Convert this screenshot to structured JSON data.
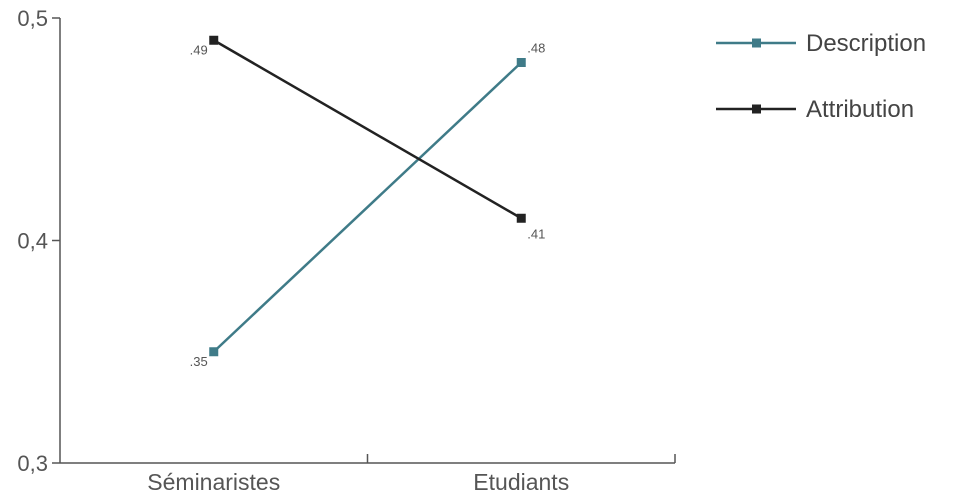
{
  "chart_data": {
    "type": "line",
    "categories": [
      "Séminaristes",
      "Etudiants"
    ],
    "series": [
      {
        "name": "Description",
        "values": [
          0.35,
          0.48
        ],
        "labels": [
          ".35",
          ".48"
        ],
        "color": "#3f7b88"
      },
      {
        "name": "Attribution",
        "values": [
          0.49,
          0.41
        ],
        "labels": [
          ".49",
          ".41"
        ],
        "color": "#222222"
      }
    ],
    "yticks": [
      "0,3",
      "0,4",
      "0,5"
    ],
    "ylim": [
      0.3,
      0.5
    ],
    "grid": false,
    "legend": "top-right",
    "marker": "square"
  }
}
